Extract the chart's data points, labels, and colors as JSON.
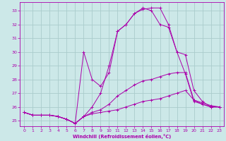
{
  "xlabel": "Windchill (Refroidissement éolien,°C)",
  "bg_color": "#cce8e8",
  "grid_color": "#aacccc",
  "line_color": "#aa00aa",
  "spine_color": "#aa00aa",
  "xlim": [
    -0.5,
    23.5
  ],
  "ylim": [
    24.6,
    33.6
  ],
  "yticks": [
    25,
    26,
    27,
    28,
    29,
    30,
    31,
    32,
    33
  ],
  "xticks": [
    0,
    1,
    2,
    3,
    4,
    5,
    6,
    7,
    8,
    9,
    10,
    11,
    12,
    13,
    14,
    15,
    16,
    17,
    18,
    19,
    20,
    21,
    22,
    23
  ],
  "lines": [
    {
      "x": [
        0,
        1,
        2,
        3,
        4,
        5,
        6,
        7,
        8,
        9,
        10,
        11,
        12,
        13,
        14,
        15,
        16,
        17,
        18,
        19,
        20,
        21,
        22,
        23
      ],
      "y": [
        25.6,
        25.4,
        25.4,
        25.4,
        25.3,
        25.1,
        24.8,
        25.3,
        25.5,
        25.6,
        25.7,
        25.8,
        26.0,
        26.2,
        26.4,
        26.5,
        26.6,
        26.8,
        27.0,
        27.2,
        26.5,
        26.2,
        26.0,
        26.0
      ]
    },
    {
      "x": [
        0,
        1,
        2,
        3,
        4,
        5,
        6,
        7,
        8,
        9,
        10,
        11,
        12,
        13,
        14,
        15,
        16,
        17,
        18,
        19,
        20,
        21,
        22,
        23
      ],
      "y": [
        25.6,
        25.4,
        25.4,
        25.4,
        25.3,
        25.1,
        24.8,
        25.3,
        25.6,
        25.8,
        26.2,
        26.8,
        27.2,
        27.6,
        27.9,
        28.0,
        28.2,
        28.4,
        28.5,
        28.5,
        26.5,
        26.3,
        26.1,
        26.0
      ]
    },
    {
      "x": [
        0,
        1,
        2,
        3,
        4,
        5,
        6,
        7,
        8,
        9,
        10,
        11,
        12,
        13,
        14,
        15,
        16,
        17,
        18,
        19,
        20,
        21,
        22,
        23
      ],
      "y": [
        25.6,
        25.4,
        25.4,
        25.4,
        25.3,
        25.1,
        24.8,
        30.0,
        28.0,
        27.5,
        28.5,
        31.5,
        32.0,
        32.8,
        33.2,
        33.0,
        32.0,
        31.8,
        30.0,
        29.8,
        27.2,
        26.4,
        26.0,
        26.0
      ]
    },
    {
      "x": [
        0,
        1,
        2,
        3,
        4,
        5,
        6,
        7,
        8,
        9,
        10,
        11,
        12,
        13,
        14,
        15,
        16,
        17,
        18,
        19,
        20,
        21,
        22,
        23
      ],
      "y": [
        25.6,
        25.4,
        25.4,
        25.4,
        25.3,
        25.1,
        24.8,
        25.3,
        26.0,
        27.0,
        29.0,
        31.5,
        32.0,
        32.8,
        33.1,
        33.2,
        33.2,
        32.0,
        30.0,
        28.4,
        26.4,
        26.2,
        26.0,
        26.0
      ]
    }
  ]
}
